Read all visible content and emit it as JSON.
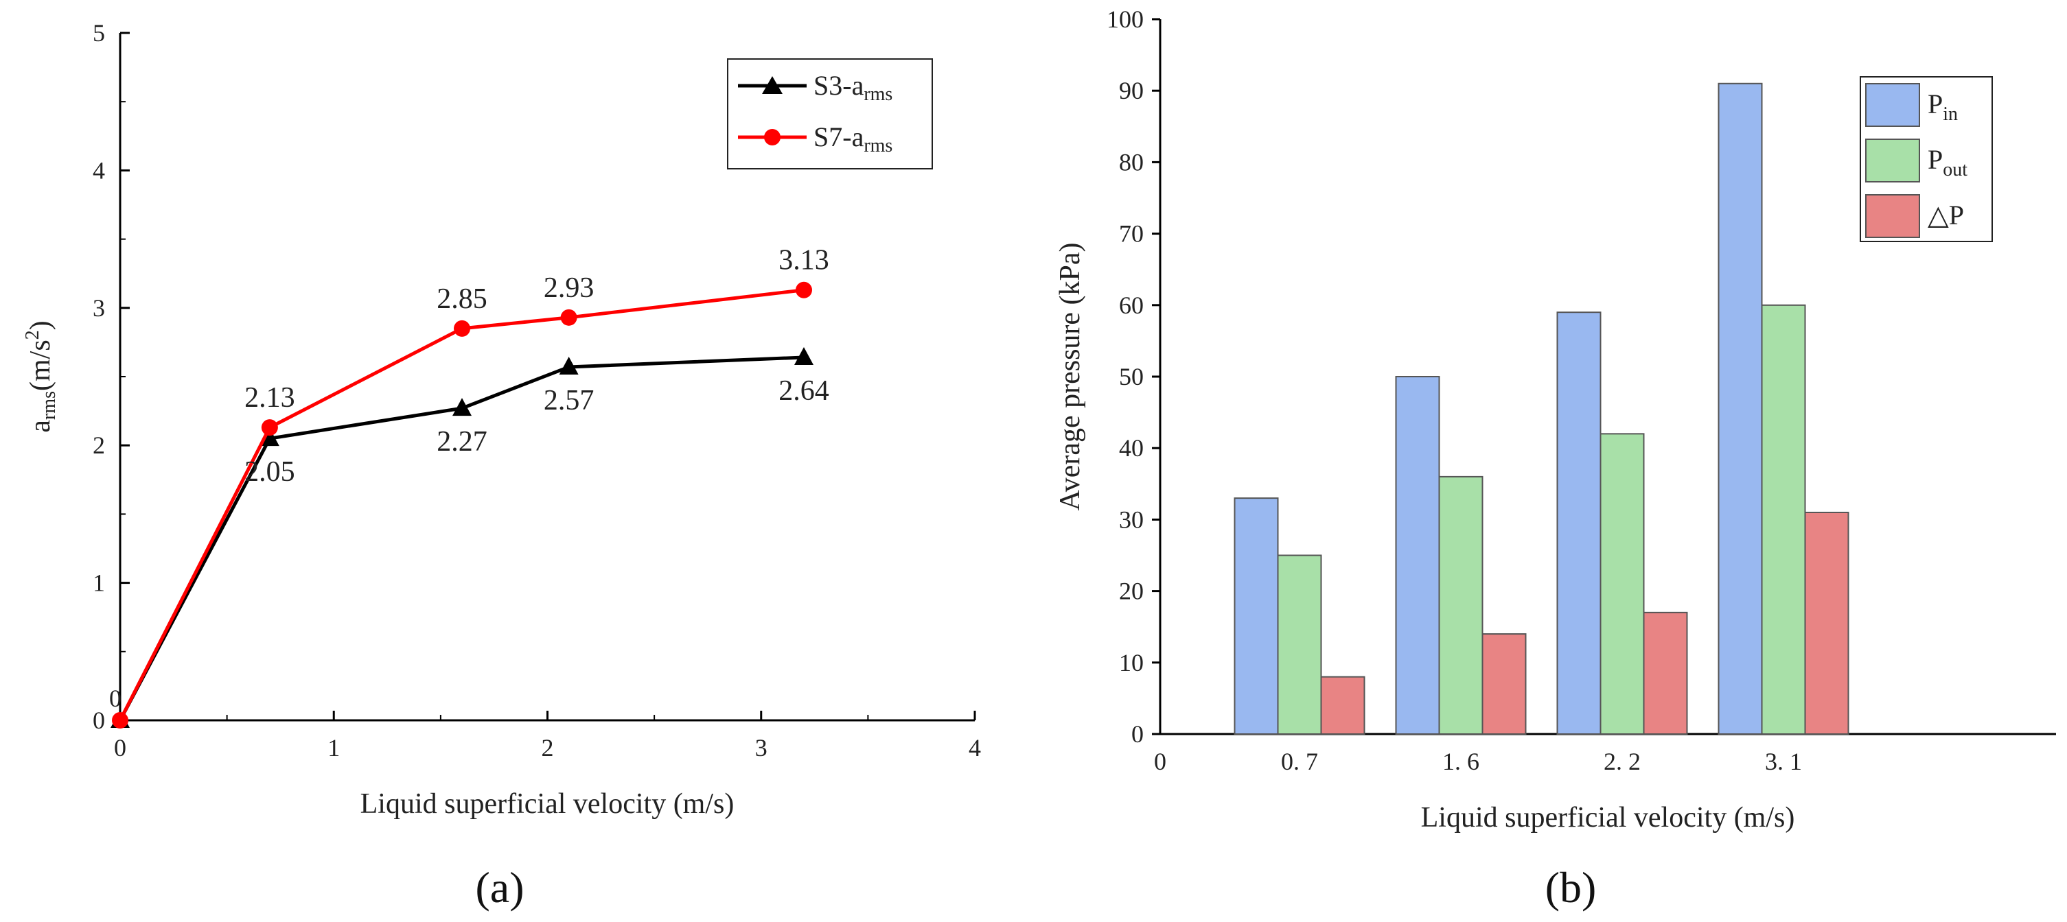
{
  "chart_data": [
    {
      "type": "line",
      "panel_label": "(a)",
      "title": "",
      "xlabel": "Liquid superficial velocity (m/s)",
      "ylabel": "a_rms(m/s^2)",
      "ylabel_main": "a",
      "ylabel_sub": "rms",
      "ylabel_rest": "(m/s",
      "ylabel_sup": "2",
      "ylabel_close": ")",
      "xlim": [
        0,
        4
      ],
      "ylim": [
        0,
        5
      ],
      "xticks": [
        0,
        1,
        2,
        3,
        4
      ],
      "yticks": [
        0,
        1,
        2,
        3,
        4,
        5
      ],
      "origin_label": "0",
      "legend_position": "top-right",
      "series": [
        {
          "name": "S3-a_rms",
          "legend_main": "S3-a",
          "legend_sub": "rms",
          "color": "#000000",
          "marker": "triangle",
          "x": [
            0,
            0.7,
            1.6,
            2.1,
            3.2
          ],
          "y": [
            0,
            2.05,
            2.27,
            2.57,
            2.64
          ],
          "labels": [
            "",
            "2.05",
            "2.27",
            "2.57",
            "2.64"
          ]
        },
        {
          "name": "S7-a_rms",
          "legend_main": "S7-a",
          "legend_sub": "rms",
          "color": "#ff0000",
          "marker": "circle",
          "x": [
            0,
            0.7,
            1.6,
            2.1,
            3.2
          ],
          "y": [
            0,
            2.13,
            2.85,
            2.93,
            3.13
          ],
          "labels": [
            "",
            "2.13",
            "2.85",
            "2.93",
            "3.13"
          ]
        }
      ]
    },
    {
      "type": "bar",
      "panel_label": "(b)",
      "title": "",
      "xlabel": "Liquid superficial velocity (m/s)",
      "ylabel": "Average pressure (kPa)",
      "categories": [
        "0. 7",
        "1. 6",
        "2. 2",
        "3. 1"
      ],
      "x_origin_label": "0",
      "ylim": [
        0,
        100
      ],
      "yticks": [
        0,
        10,
        20,
        30,
        40,
        50,
        60,
        70,
        80,
        90,
        100
      ],
      "legend_position": "top-right",
      "series": [
        {
          "name": "P_in",
          "legend_main": "P",
          "legend_sub": "in",
          "color": "#99b8f0",
          "values": [
            33,
            50,
            59,
            91
          ]
        },
        {
          "name": "P_out",
          "legend_main": "P",
          "legend_sub": "out",
          "color": "#a8e0a8",
          "values": [
            25,
            36,
            42,
            60
          ]
        },
        {
          "name": "△P",
          "legend_main": "△P",
          "legend_sub": "",
          "color": "#e88484",
          "values": [
            8,
            14,
            17,
            31
          ]
        }
      ]
    }
  ]
}
